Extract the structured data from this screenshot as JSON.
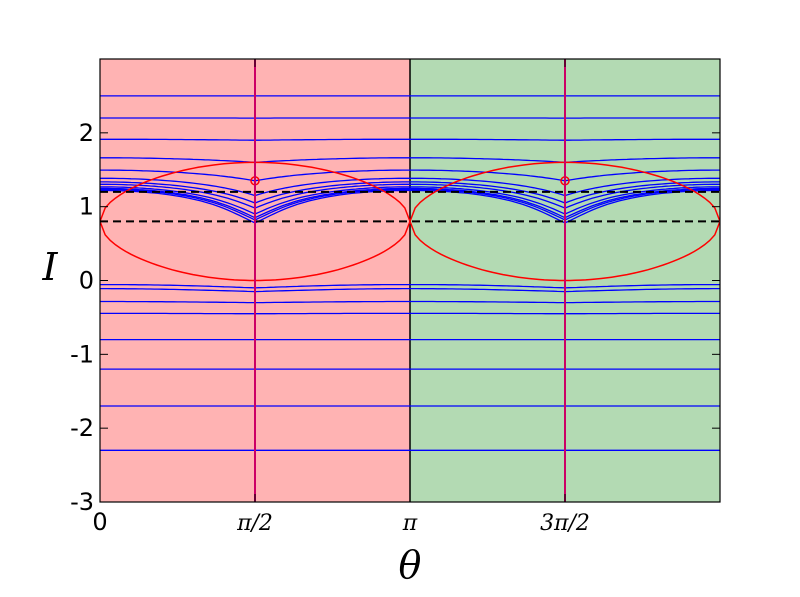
{
  "chart_data": {
    "type": "contour",
    "title": "",
    "xlabel": "θ",
    "ylabel": "I",
    "xlim": [
      0,
      6.2832
    ],
    "ylim": [
      -3,
      3
    ],
    "x_ticks": [
      {
        "value": 0,
        "label": "0"
      },
      {
        "value": 1.5708,
        "label": "π/2"
      },
      {
        "value": 3.1416,
        "label": "π"
      },
      {
        "value": 4.7124,
        "label": "3π/2"
      }
    ],
    "y_ticks": [
      {
        "value": -3,
        "label": "-3"
      },
      {
        "value": -2,
        "label": "-2"
      },
      {
        "value": -1,
        "label": "-1"
      },
      {
        "value": 0,
        "label": "0"
      },
      {
        "value": 1,
        "label": "1"
      },
      {
        "value": 2,
        "label": "2"
      }
    ],
    "regions": [
      {
        "x_range": [
          0,
          3.1416
        ],
        "color": "#ffb3b3"
      },
      {
        "x_range": [
          3.1416,
          6.2832
        ],
        "color": "#b3dab3"
      }
    ],
    "dashed_lines_y": [
      0.8,
      1.2
    ],
    "resonance_centers_x": [
      1.5708,
      4.7124
    ],
    "flow_line_levels_I": [
      2.5,
      2.2,
      1.9,
      1.6,
      1.35,
      1.15,
      1.05,
      0.98,
      0.9,
      0.85,
      0.82,
      0.78,
      0.74,
      0.68,
      0.6,
      0.45,
      0.3,
      0.1,
      -0.15,
      -0.45,
      -0.8,
      -1.2,
      -1.7,
      -2.3
    ],
    "separatrix": {
      "center_I": 0.8,
      "half_width_I": 0.8
    },
    "colors": {
      "flow_lines": "#0000ff",
      "separatrix": "#ff0000",
      "center_line": "#cc0066",
      "dashed": "#000000"
    }
  }
}
